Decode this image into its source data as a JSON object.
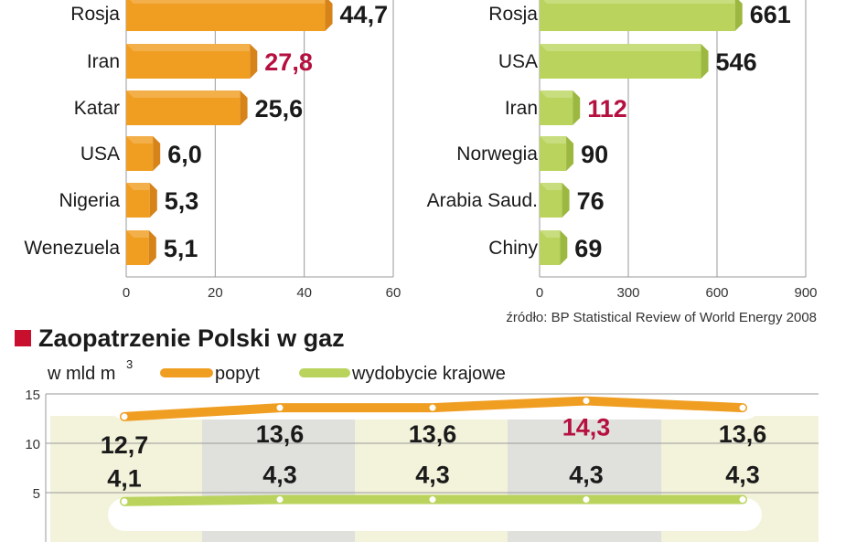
{
  "colors": {
    "orange": "#ef9e22",
    "orange_side": "#d6831a",
    "orange_top": "#f6be6a",
    "green": "#b9d35c",
    "green_side": "#9cb840",
    "green_top": "#d6e69a",
    "highlight": "#b5103f",
    "title_marker": "#c8102e",
    "band_light": "#f3f2da",
    "band_gray": "#e0e0dc"
  },
  "chart_data": [
    {
      "type": "bar",
      "orientation": "horizontal",
      "categories": [
        "Rosja",
        "Iran",
        "Katar",
        "USA",
        "Nigeria",
        "Wenezuela"
      ],
      "values": [
        44.7,
        27.8,
        25.6,
        6.0,
        5.3,
        5.1
      ],
      "value_labels": [
        "44,7",
        "27,8",
        "25,6",
        "6,0",
        "5,3",
        "5,1"
      ],
      "highlight_index": 1,
      "xlim": [
        0,
        60
      ],
      "xticks": [
        0,
        20,
        40,
        60
      ],
      "grid": true,
      "color": "orange"
    },
    {
      "type": "bar",
      "orientation": "horizontal",
      "categories": [
        "Rosja",
        "USA",
        "Iran",
        "Norwegia",
        "Arabia Saud.",
        "Chiny"
      ],
      "values": [
        661,
        546,
        112,
        90,
        76,
        69
      ],
      "value_labels": [
        "661",
        "546",
        "112",
        "90",
        "76",
        "69"
      ],
      "highlight_index": 2,
      "xlim": [
        0,
        900
      ],
      "xticks": [
        0,
        300,
        600,
        900
      ],
      "grid": true,
      "color": "green",
      "source": "źródło: BP Statistical Review of World Energy 2008"
    },
    {
      "type": "line",
      "title": "Zaopatrzenie Polski w gaz",
      "unit": "w mld m",
      "unit_sup": "3",
      "yticks": [
        5,
        10,
        15
      ],
      "ylim": [
        0,
        15
      ],
      "grid": true,
      "series": [
        {
          "name": "popyt",
          "color": "orange",
          "values": [
            12.7,
            13.6,
            13.6,
            14.3,
            13.6
          ],
          "value_labels": [
            "12,7",
            "13,6",
            "13,6",
            "14,3",
            "13,6"
          ],
          "highlight_index": 3
        },
        {
          "name": "wydobycie krajowe",
          "color": "green",
          "values": [
            4.1,
            4.3,
            4.3,
            4.3,
            4.3
          ],
          "value_labels": [
            "4,1",
            "4,3",
            "4,3",
            "4,3",
            "4,3"
          ]
        }
      ]
    }
  ]
}
